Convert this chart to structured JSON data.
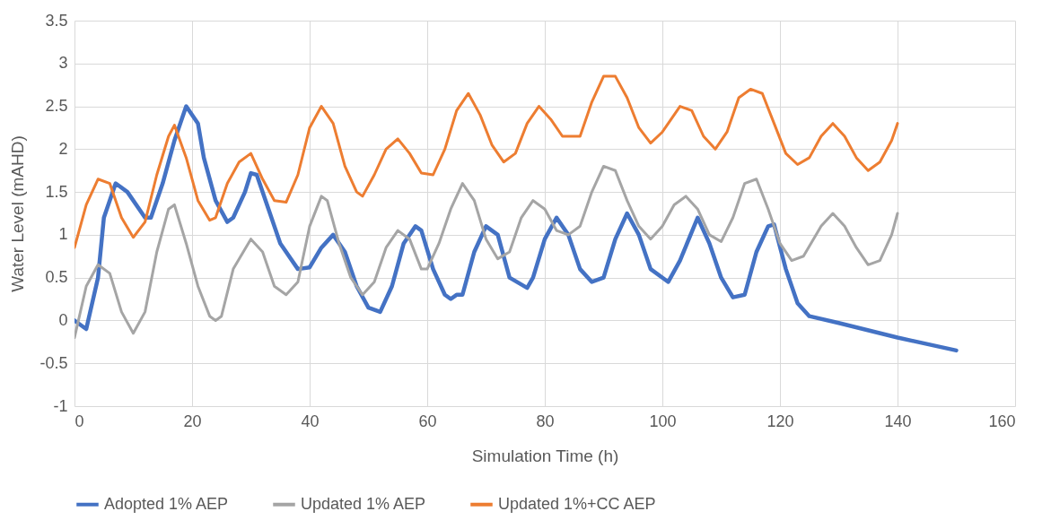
{
  "chart_data": {
    "type": "line",
    "xlabel": "Simulation Time (h)",
    "ylabel": "Water Level (mAHD)",
    "xlim": [
      0,
      160
    ],
    "xticks": [
      0,
      20,
      40,
      60,
      80,
      100,
      120,
      140,
      160
    ],
    "ylim": [
      -1,
      3.5
    ],
    "yticks": [
      -1,
      -0.5,
      0,
      0.5,
      1,
      1.5,
      2,
      2.5,
      3,
      3.5
    ],
    "grid": true,
    "legend": "bottom",
    "marker": "none",
    "line_style": "solid",
    "series": [
      {
        "name": "Adopted 1% AEP",
        "color": "#4472c4",
        "x": [
          0,
          2,
          4,
          5,
          7,
          9,
          12,
          13,
          15,
          17,
          19,
          21,
          22,
          24,
          26,
          27,
          29,
          30,
          31,
          33,
          35,
          38,
          40,
          42,
          44,
          46,
          48,
          50,
          52,
          54,
          56,
          58,
          59,
          61,
          63,
          64,
          65,
          66,
          68,
          70,
          72,
          74,
          77,
          78,
          80,
          82,
          84,
          86,
          88,
          90,
          92,
          94,
          96,
          98,
          101,
          103,
          106,
          108,
          110,
          112,
          114,
          116,
          118,
          119,
          121,
          123,
          125,
          130,
          140,
          150
        ],
        "values": [
          0,
          -0.1,
          0.5,
          1.2,
          1.6,
          1.5,
          1.2,
          1.2,
          1.6,
          2.1,
          2.5,
          2.3,
          1.9,
          1.4,
          1.15,
          1.2,
          1.5,
          1.72,
          1.7,
          1.3,
          0.9,
          0.6,
          0.62,
          0.85,
          1.0,
          0.8,
          0.4,
          0.15,
          0.1,
          0.4,
          0.9,
          1.1,
          1.05,
          0.6,
          0.3,
          0.25,
          0.3,
          0.3,
          0.8,
          1.1,
          1.0,
          0.5,
          0.38,
          0.5,
          0.95,
          1.2,
          1.0,
          0.6,
          0.45,
          0.5,
          0.95,
          1.25,
          1.0,
          0.6,
          0.45,
          0.7,
          1.2,
          0.9,
          0.5,
          0.27,
          0.3,
          0.8,
          1.1,
          1.12,
          0.6,
          0.2,
          0.05,
          -0.03,
          -0.2,
          -0.35
        ]
      },
      {
        "name": "Updated 1% AEP",
        "color": "#a5a5a5",
        "x": [
          0,
          2,
          4,
          6,
          8,
          10,
          12,
          14,
          16,
          17,
          19,
          21,
          23,
          24,
          25,
          27,
          30,
          32,
          34,
          36,
          38,
          40,
          42,
          43,
          45,
          47,
          49,
          51,
          53,
          55,
          57,
          59,
          60,
          62,
          64,
          66,
          68,
          70,
          72,
          74,
          76,
          78,
          80,
          82,
          84,
          86,
          88,
          90,
          92,
          94,
          96,
          98,
          100,
          102,
          104,
          106,
          108,
          110,
          112,
          114,
          116,
          118,
          120,
          122,
          124,
          127,
          129,
          131,
          133,
          135,
          137,
          139,
          140
        ],
        "values": [
          -0.2,
          0.4,
          0.65,
          0.55,
          0.1,
          -0.15,
          0.1,
          0.8,
          1.3,
          1.35,
          0.9,
          0.4,
          0.05,
          0.0,
          0.05,
          0.6,
          0.95,
          0.8,
          0.4,
          0.3,
          0.45,
          1.1,
          1.45,
          1.4,
          0.9,
          0.5,
          0.3,
          0.45,
          0.85,
          1.05,
          0.95,
          0.6,
          0.6,
          0.9,
          1.3,
          1.6,
          1.4,
          0.95,
          0.72,
          0.8,
          1.2,
          1.4,
          1.3,
          1.05,
          1.0,
          1.1,
          1.5,
          1.8,
          1.75,
          1.4,
          1.1,
          0.95,
          1.1,
          1.35,
          1.45,
          1.3,
          1.0,
          0.92,
          1.2,
          1.6,
          1.65,
          1.3,
          0.9,
          0.7,
          0.75,
          1.1,
          1.25,
          1.1,
          0.85,
          0.65,
          0.7,
          1.0,
          1.25
        ]
      },
      {
        "name": "Updated 1%+CC AEP",
        "color": "#ed7d31",
        "x": [
          0,
          2,
          4,
          6,
          8,
          10,
          12,
          14,
          16,
          17,
          19,
          21,
          23,
          24,
          26,
          28,
          30,
          32,
          34,
          36,
          38,
          40,
          42,
          44,
          46,
          48,
          49,
          51,
          53,
          55,
          57,
          59,
          61,
          63,
          65,
          67,
          69,
          71,
          73,
          75,
          77,
          79,
          81,
          83,
          86,
          88,
          90,
          92,
          94,
          96,
          98,
          100,
          103,
          105,
          107,
          109,
          111,
          113,
          115,
          117,
          119,
          121,
          123,
          125,
          127,
          129,
          131,
          133,
          135,
          137,
          139,
          140
        ],
        "values": [
          0.85,
          1.35,
          1.65,
          1.6,
          1.2,
          0.97,
          1.15,
          1.7,
          2.15,
          2.28,
          1.9,
          1.4,
          1.17,
          1.2,
          1.6,
          1.85,
          1.95,
          1.65,
          1.4,
          1.38,
          1.7,
          2.25,
          2.5,
          2.3,
          1.8,
          1.5,
          1.45,
          1.7,
          2.0,
          2.12,
          1.95,
          1.72,
          1.7,
          2.0,
          2.45,
          2.65,
          2.4,
          2.05,
          1.85,
          1.95,
          2.3,
          2.5,
          2.35,
          2.15,
          2.15,
          2.55,
          2.85,
          2.85,
          2.6,
          2.25,
          2.07,
          2.2,
          2.5,
          2.45,
          2.15,
          2.0,
          2.2,
          2.6,
          2.7,
          2.65,
          2.3,
          1.95,
          1.82,
          1.9,
          2.15,
          2.3,
          2.15,
          1.9,
          1.75,
          1.85,
          2.1,
          2.3
        ]
      }
    ]
  }
}
